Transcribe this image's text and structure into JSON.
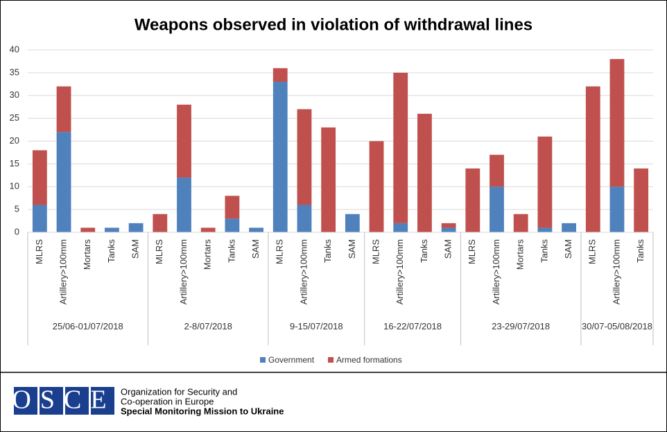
{
  "chart_data": {
    "type": "bar",
    "stacked": true,
    "title": "Weapons observed in violation of withdrawal lines",
    "groups": [
      {
        "name": "25/06-01/07/2018",
        "categories": [
          "MLRS",
          "Artillery>100mm",
          "Mortars",
          "Tanks",
          "SAM"
        ]
      },
      {
        "name": "2-8/07/2018",
        "categories": [
          "MLRS",
          "Artillery>100mm",
          "Mortars",
          "Tanks",
          "SAM"
        ]
      },
      {
        "name": "9-15/07/2018",
        "categories": [
          "MLRS",
          "Artillery>100mm",
          "Tanks",
          "SAM"
        ]
      },
      {
        "name": "16-22/07/2018",
        "categories": [
          "MLRS",
          "Artillery>100mm",
          "Tanks",
          "SAM"
        ]
      },
      {
        "name": "23-29/07/2018",
        "categories": [
          "MLRS",
          "Artillery>100mm",
          "Mortars",
          "Tanks",
          "SAM"
        ]
      },
      {
        "name": "30/07-05/08/2018",
        "categories": [
          "MLRS",
          "Artillery>100mm",
          "Tanks"
        ]
      }
    ],
    "series": [
      {
        "name": "Government",
        "color": "#4f81bd",
        "values": [
          6,
          22,
          0,
          1,
          2,
          0,
          12,
          0,
          3,
          1,
          33,
          6,
          0,
          4,
          0,
          2,
          0,
          1,
          0,
          10,
          0,
          1,
          2,
          0,
          10,
          0
        ]
      },
      {
        "name": "Armed formations",
        "color": "#c0504d",
        "values": [
          12,
          10,
          1,
          0,
          0,
          4,
          16,
          1,
          5,
          0,
          3,
          21,
          23,
          0,
          20,
          33,
          26,
          1,
          14,
          7,
          4,
          20,
          0,
          32,
          28,
          14
        ]
      }
    ],
    "ylim": [
      0,
      40
    ],
    "yticks": [
      0,
      5,
      10,
      15,
      20,
      25,
      30,
      35,
      40
    ],
    "grid": true,
    "legend": "bottom"
  },
  "footer": {
    "logo": "OSCE",
    "lines": [
      "Organization for Security and",
      "Co-operation in Europe",
      "Special Monitoring Mission to Ukraine"
    ]
  }
}
